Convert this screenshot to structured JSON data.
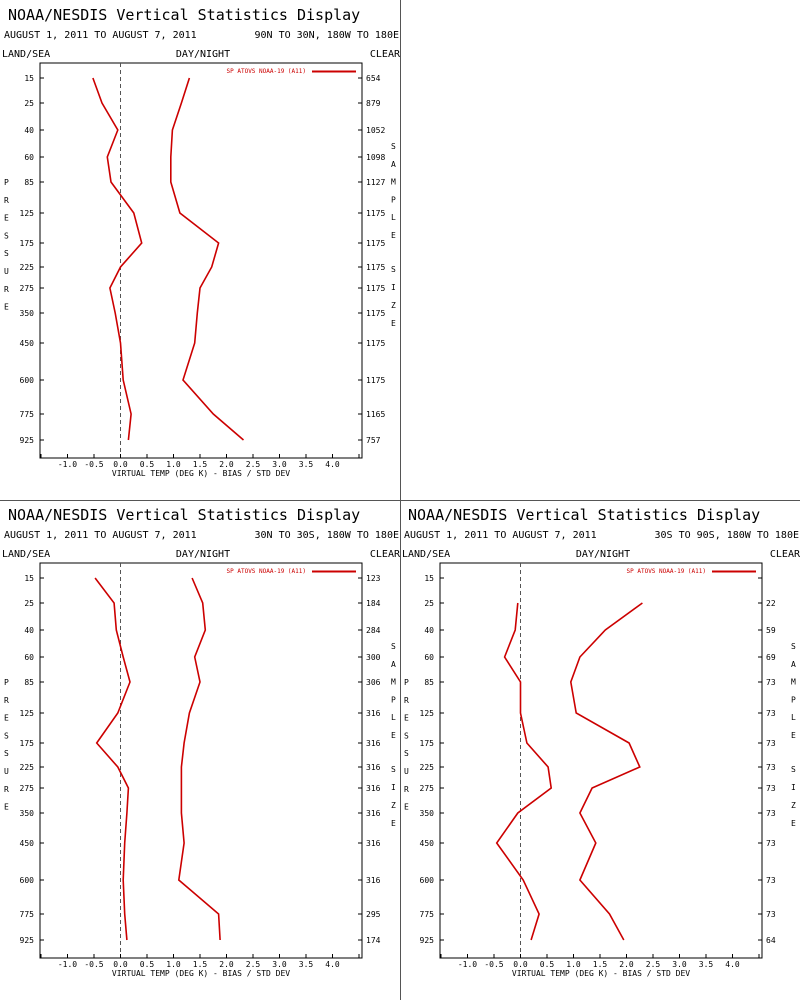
{
  "panels": [
    {
      "title": "NOAA/NESDIS Vertical Statistics Display",
      "period": "AUGUST 1, 2011 TO AUGUST 7, 2011",
      "region": "90N TO 30N, 180W TO 180E",
      "left_label": "LAND/SEA",
      "center_label": "DAY/NIGHT",
      "right_label": "CLEAR",
      "y_axis_letters": [
        "P",
        "R",
        "E",
        "S",
        "S",
        "U",
        "R",
        "E"
      ],
      "right_axis_letters": [
        "S",
        "A",
        "M",
        "P",
        "L",
        "E",
        "S",
        "I",
        "Z",
        "E"
      ],
      "xlabel": "VIRTUAL TEMP (DEG K) - BIAS / STD DEV",
      "legend": "SP ATOVS NOAA-19 (A11)",
      "line_color": "#cc0000"
    },
    {
      "title": "NOAA/NESDIS Vertical Statistics Display",
      "period": "AUGUST 1, 2011 TO AUGUST 7, 2011",
      "region": "30N TO 30S, 180W TO 180E",
      "left_label": "LAND/SEA",
      "center_label": "DAY/NIGHT",
      "right_label": "CLEAR",
      "y_axis_letters": [
        "P",
        "R",
        "E",
        "S",
        "S",
        "U",
        "R",
        "E"
      ],
      "right_axis_letters": [
        "S",
        "A",
        "M",
        "P",
        "L",
        "E",
        "S",
        "I",
        "Z",
        "E"
      ],
      "xlabel": "VIRTUAL TEMP (DEG K) - BIAS / STD DEV",
      "legend": "SP ATOVS NOAA-19 (A11)",
      "line_color": "#cc0000"
    },
    {
      "title": "NOAA/NESDIS Vertical Statistics Display",
      "period": "AUGUST 1, 2011 TO AUGUST 7, 2011",
      "region": "30S TO 90S, 180W TO 180E",
      "left_label": "LAND/SEA",
      "center_label": "DAY/NIGHT",
      "right_label": "CLEAR",
      "y_axis_letters": [
        "P",
        "R",
        "E",
        "S",
        "S",
        "U",
        "R",
        "E"
      ],
      "right_axis_letters": [
        "S",
        "A",
        "M",
        "P",
        "L",
        "E",
        "S",
        "I",
        "Z",
        "E"
      ],
      "xlabel": "VIRTUAL TEMP (DEG K) - BIAS / STD DEV",
      "legend": "SP ATOVS NOAA-19 (A11)",
      "line_color": "#cc0000"
    }
  ],
  "chart_data": [
    {
      "type": "line",
      "title": "NOAA/NESDIS Vertical Statistics Display",
      "xlabel": "VIRTUAL TEMP (DEG K) - BIAS / STD DEV",
      "ylabel": "PRESSURE",
      "y2label": "SAMPLE SIZE",
      "x_ticks": [
        "-1.0",
        "-0.5",
        "0.0",
        "0.5",
        "1.0",
        "1.5",
        "2.0",
        "2.5",
        "3.0",
        "3.5",
        "4.0"
      ],
      "xlim": [
        -1.5,
        4.5
      ],
      "pressure_levels": [
        15,
        25,
        40,
        60,
        85,
        125,
        175,
        225,
        275,
        350,
        450,
        600,
        775,
        925
      ],
      "sample_size": [
        "654",
        "879",
        "1052",
        "1098",
        "1127",
        "1175",
        "1175",
        "1175",
        "1175",
        "1175",
        "1175",
        "1175",
        "1165",
        "757"
      ],
      "series": [
        {
          "name": "SP ATOVS NOAA-19 (A11)",
          "values": [
            -0.52,
            -0.35,
            -0.05,
            -0.25,
            -0.18,
            0.25,
            0.4,
            0.0,
            -0.2,
            -0.1,
            0.0,
            0.05,
            0.2,
            0.15
          ]
        },
        {
          "name": "SP ATOVS NOAA-19 (A11)",
          "values": [
            1.3,
            1.15,
            0.98,
            0.95,
            0.95,
            1.12,
            1.85,
            1.72,
            1.5,
            1.45,
            1.4,
            1.18,
            1.75,
            2.32
          ]
        }
      ]
    },
    {
      "type": "line",
      "title": "NOAA/NESDIS Vertical Statistics Display",
      "xlabel": "VIRTUAL TEMP (DEG K) - BIAS / STD DEV",
      "ylabel": "PRESSURE",
      "y2label": "SAMPLE SIZE",
      "x_ticks": [
        "-1.0",
        "-0.5",
        "0.0",
        "0.5",
        "1.0",
        "1.5",
        "2.0",
        "2.5",
        "3.0",
        "3.5",
        "4.0"
      ],
      "xlim": [
        -1.5,
        4.5
      ],
      "pressure_levels": [
        15,
        25,
        40,
        60,
        85,
        125,
        175,
        225,
        275,
        350,
        450,
        600,
        775,
        925
      ],
      "sample_size": [
        "123",
        "184",
        "284",
        "300",
        "306",
        "316",
        "316",
        "316",
        "316",
        "316",
        "316",
        "316",
        "295",
        "174"
      ],
      "series": [
        {
          "name": "SP ATOVS NOAA-19 (A11)",
          "values": [
            -0.48,
            -0.12,
            -0.08,
            0.05,
            0.18,
            -0.05,
            -0.45,
            -0.05,
            0.15,
            0.12,
            0.08,
            0.05,
            0.08,
            0.12
          ]
        },
        {
          "name": "SP ATOVS NOAA-19 (A11)",
          "values": [
            1.35,
            1.55,
            1.6,
            1.4,
            1.5,
            1.3,
            1.2,
            1.15,
            1.15,
            1.15,
            1.2,
            1.1,
            1.85,
            1.88
          ]
        }
      ]
    },
    {
      "type": "line",
      "title": "NOAA/NESDIS Vertical Statistics Display",
      "xlabel": "VIRTUAL TEMP (DEG K) - BIAS / STD DEV",
      "ylabel": "PRESSURE",
      "y2label": "SAMPLE SIZE",
      "x_ticks": [
        "-1.0",
        "-0.5",
        "0.0",
        "0.5",
        "1.0",
        "1.5",
        "2.0",
        "2.5",
        "3.0",
        "3.5",
        "4.0"
      ],
      "xlim": [
        -1.5,
        4.5
      ],
      "pressure_levels": [
        15,
        25,
        40,
        60,
        85,
        125,
        175,
        225,
        275,
        350,
        450,
        600,
        775,
        925
      ],
      "sample_size": [
        "",
        "22",
        "59",
        "69",
        "73",
        "73",
        "73",
        "73",
        "73",
        "73",
        "73",
        "73",
        "73",
        "64"
      ],
      "series": [
        {
          "name": "SP ATOVS NOAA-19 (A11)",
          "values": [
            null,
            -0.05,
            -0.1,
            -0.3,
            0.0,
            0.0,
            0.12,
            0.52,
            0.58,
            -0.05,
            -0.45,
            0.05,
            0.35,
            0.2
          ]
        },
        {
          "name": "SP ATOVS NOAA-19 (A11)",
          "values": [
            null,
            2.3,
            1.6,
            1.12,
            0.95,
            1.05,
            2.05,
            2.25,
            1.35,
            1.12,
            1.42,
            1.12,
            1.68,
            1.95
          ]
        }
      ]
    }
  ]
}
